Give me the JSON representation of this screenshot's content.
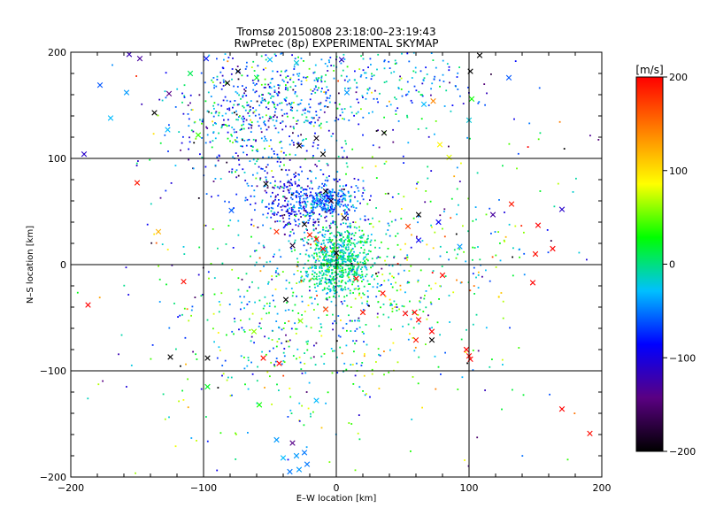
{
  "chart_data": {
    "type": "scatter",
    "title": "Tromsø 20150808 23:18:00–23:19:43",
    "subtitle": "RwPretec (8p) EXPERIMENTAL SKYMAP",
    "xlabel": "E–W location [km]",
    "ylabel": "N–S location [km]",
    "xlim": [
      -200,
      200
    ],
    "ylim": [
      -200,
      200
    ],
    "x_ticks": [
      "−200",
      "−100",
      "0",
      "100",
      "200"
    ],
    "y_ticks": [
      "−200",
      "−100",
      "0",
      "100",
      "200"
    ],
    "grid": "lines at ±100 and 0 on both axes",
    "marker_types": [
      "dot",
      "cross"
    ],
    "colorbar": {
      "label": "[m/s]",
      "range": [
        -200,
        200
      ],
      "ticks": [
        "200",
        "100",
        "0",
        "−100",
        "−200"
      ],
      "colormap": [
        "#000000",
        "#5a0082",
        "#0000ff",
        "#00c0ff",
        "#00ff00",
        "#ffff00",
        "#ff8000",
        "#ff0000"
      ]
    },
    "crosses": [
      {
        "x": -156,
        "y": 198,
        "v": -120
      },
      {
        "x": -148,
        "y": 194,
        "v": -130
      },
      {
        "x": -178,
        "y": 169,
        "v": -60
      },
      {
        "x": -158,
        "y": 162,
        "v": -40
      },
      {
        "x": -170,
        "y": 138,
        "v": -30
      },
      {
        "x": -190,
        "y": 104,
        "v": -110
      },
      {
        "x": -137,
        "y": 143,
        "v": -200
      },
      {
        "x": -126,
        "y": 161,
        "v": -140
      },
      {
        "x": -110,
        "y": 180,
        "v": 10
      },
      {
        "x": -98,
        "y": 194,
        "v": -80
      },
      {
        "x": -82,
        "y": 171,
        "v": -200
      },
      {
        "x": -74,
        "y": 182,
        "v": -200
      },
      {
        "x": -60,
        "y": 176,
        "v": 20
      },
      {
        "x": -50,
        "y": 193,
        "v": -30
      },
      {
        "x": -30,
        "y": 190,
        "v": -20
      },
      {
        "x": -28,
        "y": 112,
        "v": -200
      },
      {
        "x": -15,
        "y": 119,
        "v": -190
      },
      {
        "x": -10,
        "y": 104,
        "v": -200
      },
      {
        "x": 4,
        "y": 193,
        "v": -110
      },
      {
        "x": 8,
        "y": 162,
        "v": -40
      },
      {
        "x": 36,
        "y": 124,
        "v": -200
      },
      {
        "x": 66,
        "y": 151,
        "v": -30
      },
      {
        "x": 78,
        "y": 113,
        "v": 90
      },
      {
        "x": 73,
        "y": 154,
        "v": 140
      },
      {
        "x": 101,
        "y": 182,
        "v": -200
      },
      {
        "x": 108,
        "y": 197,
        "v": -200
      },
      {
        "x": 130,
        "y": 176,
        "v": -60
      },
      {
        "x": 102,
        "y": 156,
        "v": 30
      },
      {
        "x": 100,
        "y": 136,
        "v": -20
      },
      {
        "x": -127,
        "y": 127,
        "v": -30
      },
      {
        "x": -150,
        "y": 77,
        "v": 190
      },
      {
        "x": -134,
        "y": 31,
        "v": 120
      },
      {
        "x": -104,
        "y": 122,
        "v": 40
      },
      {
        "x": -79,
        "y": 51,
        "v": -60
      },
      {
        "x": -53,
        "y": 76,
        "v": -200
      },
      {
        "x": -8,
        "y": 69,
        "v": -200
      },
      {
        "x": -4,
        "y": 60,
        "v": -180
      },
      {
        "x": 6,
        "y": 44,
        "v": -190
      },
      {
        "x": 62,
        "y": 47,
        "v": -200
      },
      {
        "x": 85,
        "y": 101,
        "v": 80
      },
      {
        "x": 118,
        "y": 47,
        "v": -130
      },
      {
        "x": 132,
        "y": 57,
        "v": 190
      },
      {
        "x": 152,
        "y": 37,
        "v": 200
      },
      {
        "x": 170,
        "y": 52,
        "v": -110
      },
      {
        "x": 163,
        "y": 15,
        "v": 200
      },
      {
        "x": 150,
        "y": 10,
        "v": 195
      },
      {
        "x": 77,
        "y": 40,
        "v": -90
      },
      {
        "x": 54,
        "y": 36,
        "v": 170
      },
      {
        "x": 62,
        "y": 23,
        "v": -90
      },
      {
        "x": -24,
        "y": 38,
        "v": -200
      },
      {
        "x": -33,
        "y": 18,
        "v": -180
      },
      {
        "x": -45,
        "y": 31,
        "v": 180
      },
      {
        "x": -20,
        "y": 28,
        "v": 190
      },
      {
        "x": -15,
        "y": 24,
        "v": 185
      },
      {
        "x": -10,
        "y": 15,
        "v": 200
      },
      {
        "x": 0,
        "y": 11,
        "v": -200
      },
      {
        "x": 93,
        "y": 17,
        "v": -40
      },
      {
        "x": -187,
        "y": -38,
        "v": 200
      },
      {
        "x": -115,
        "y": -16,
        "v": 195
      },
      {
        "x": -125,
        "y": -87,
        "v": -200
      },
      {
        "x": -97,
        "y": -88,
        "v": -200
      },
      {
        "x": -62,
        "y": -63,
        "v": 60
      },
      {
        "x": -55,
        "y": -88,
        "v": 195
      },
      {
        "x": -43,
        "y": -93,
        "v": 200
      },
      {
        "x": -38,
        "y": -33,
        "v": -200
      },
      {
        "x": -27,
        "y": -53,
        "v": 60
      },
      {
        "x": -8,
        "y": -42,
        "v": 170
      },
      {
        "x": 20,
        "y": -45,
        "v": 190
      },
      {
        "x": 35,
        "y": -27,
        "v": 195
      },
      {
        "x": 52,
        "y": -46,
        "v": 200
      },
      {
        "x": 59,
        "y": -45,
        "v": 195
      },
      {
        "x": 62,
        "y": -52,
        "v": 200
      },
      {
        "x": 60,
        "y": -71,
        "v": 190
      },
      {
        "x": 72,
        "y": -63,
        "v": 200
      },
      {
        "x": 72,
        "y": -71,
        "v": -200
      },
      {
        "x": 80,
        "y": -10,
        "v": 195
      },
      {
        "x": 98,
        "y": -80,
        "v": 200
      },
      {
        "x": 100,
        "y": -86,
        "v": 195
      },
      {
        "x": 101,
        "y": -89,
        "v": 200
      },
      {
        "x": 148,
        "y": -17,
        "v": 200
      },
      {
        "x": 170,
        "y": -136,
        "v": 200
      },
      {
        "x": 191,
        "y": -159,
        "v": 195
      },
      {
        "x": -97,
        "y": -115,
        "v": 20
      },
      {
        "x": -58,
        "y": -132,
        "v": 30
      },
      {
        "x": -45,
        "y": -165,
        "v": -40
      },
      {
        "x": -40,
        "y": -182,
        "v": -30
      },
      {
        "x": -33,
        "y": -168,
        "v": -140
      },
      {
        "x": -30,
        "y": -180,
        "v": -40
      },
      {
        "x": -28,
        "y": -193,
        "v": -40
      },
      {
        "x": -35,
        "y": -195,
        "v": -50
      },
      {
        "x": -22,
        "y": -188,
        "v": -50
      },
      {
        "x": -24,
        "y": -177,
        "v": -50
      },
      {
        "x": -15,
        "y": -128,
        "v": -30
      },
      {
        "x": 15,
        "y": -13,
        "v": 200
      }
    ],
    "dot_clusters": [
      {
        "cx": 2,
        "cy": 2,
        "sx": 13,
        "sy": 17,
        "count": 700,
        "vmean": -5,
        "vsd": 22
      },
      {
        "cx": -22,
        "cy": 58,
        "sx": 22,
        "sy": 15,
        "count": 380,
        "vmean": -85,
        "vsd": 35
      },
      {
        "cx": -8,
        "cy": 62,
        "sx": 12,
        "sy": 8,
        "count": 180,
        "vmean": -45,
        "vsd": 20
      },
      {
        "cx": -55,
        "cy": 140,
        "sx": 38,
        "sy": 35,
        "count": 650,
        "vmean": -55,
        "vsd": 60
      },
      {
        "cx": 30,
        "cy": 170,
        "sx": 45,
        "sy": 22,
        "count": 220,
        "vmean": -45,
        "vsd": 45
      },
      {
        "cx": 10,
        "cy": -40,
        "sx": 55,
        "sy": 50,
        "count": 380,
        "vmean": 10,
        "vsd": 55
      },
      {
        "cx": -55,
        "cy": -70,
        "sx": 45,
        "sy": 55,
        "count": 160,
        "vmean": -20,
        "vsd": 60
      },
      {
        "cx": 85,
        "cy": 20,
        "sx": 45,
        "sy": 45,
        "count": 120,
        "vmean": 0,
        "vsd": 90
      },
      {
        "cx": 0,
        "cy": 0,
        "sx": 115,
        "sy": 115,
        "count": 260,
        "vmean": 0,
        "vsd": 90
      }
    ]
  }
}
